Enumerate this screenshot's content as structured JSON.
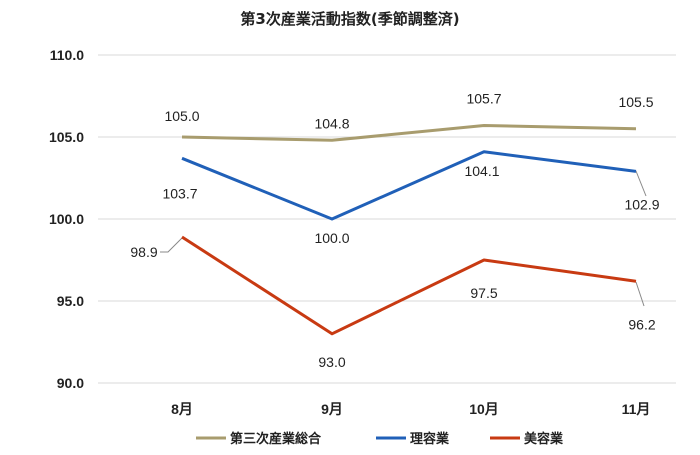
{
  "chart_data": {
    "type": "line",
    "title": "第3次産業活動指数(季節調整済)",
    "categories": [
      "8月",
      "9月",
      "10月",
      "11月"
    ],
    "ylim": [
      90,
      110
    ],
    "yticks": [
      "90.0",
      "95.0",
      "100.0",
      "105.0",
      "110.0"
    ],
    "grid": true,
    "legend": "bottom",
    "series": [
      {
        "name": "第三次産業総合",
        "values": [
          105.0,
          104.8,
          105.7,
          105.5
        ],
        "labels": [
          "105.0",
          "104.8",
          "105.7",
          "105.5"
        ],
        "color": "#A89C6E"
      },
      {
        "name": "理容業",
        "values": [
          103.7,
          100.0,
          104.1,
          102.9
        ],
        "labels": [
          "103.7",
          "100.0",
          "104.1",
          "102.9"
        ],
        "color": "#2060B8"
      },
      {
        "name": "美容業",
        "values": [
          98.9,
          93.0,
          97.5,
          96.2
        ],
        "labels": [
          "98.9",
          "93.0",
          "97.5",
          "96.2"
        ],
        "color": "#C83A12"
      }
    ]
  }
}
